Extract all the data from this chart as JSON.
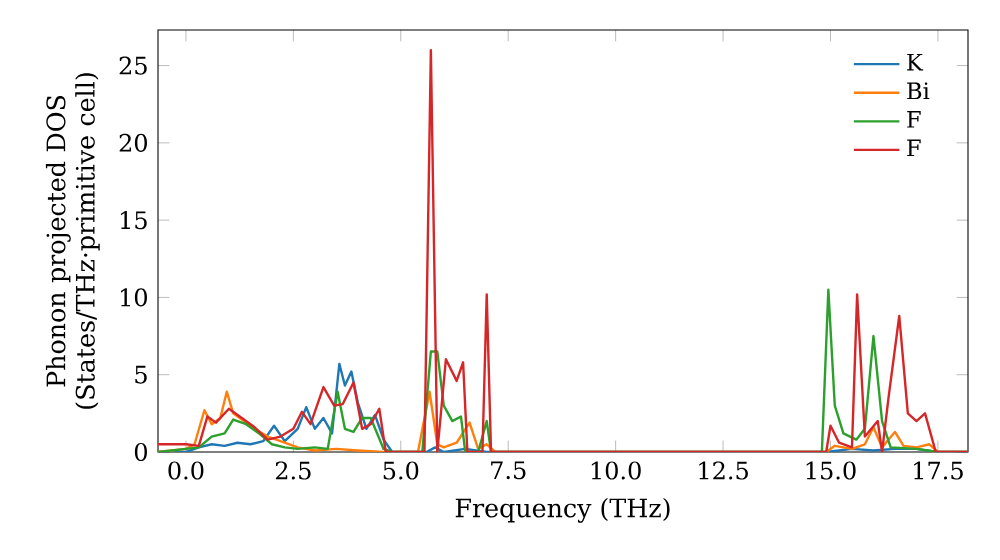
{
  "chart_data": {
    "type": "line",
    "xlabel": "Frequency (THz)",
    "ylabel": "Phonon projected DOS (States/THz·primitive cell)",
    "xlim": [
      -0.65,
      18.2
    ],
    "ylim": [
      0,
      27.3
    ],
    "xticks": [
      {
        "value": 0,
        "label": "0.0"
      },
      {
        "value": 2.5,
        "label": "2.5"
      },
      {
        "value": 5,
        "label": "5.0"
      },
      {
        "value": 7.5,
        "label": "7.5"
      },
      {
        "value": 10,
        "label": "10.0"
      },
      {
        "value": 12.5,
        "label": "12.5"
      },
      {
        "value": 15,
        "label": "15.0"
      },
      {
        "value": 17.5,
        "label": "17.5"
      }
    ],
    "yticks": [
      0,
      5,
      10,
      15,
      20,
      25
    ],
    "legend": "top right",
    "grid": false,
    "line_style": "solid",
    "marker": "none",
    "series": [
      {
        "name": "K",
        "color": "#1f77b4",
        "x": [
          -0.65,
          0,
          0.3,
          0.6,
          0.9,
          1.2,
          1.5,
          1.8,
          2.05,
          2.3,
          2.6,
          2.8,
          3.0,
          3.2,
          3.4,
          3.57,
          3.7,
          3.85,
          4.0,
          4.2,
          4.4,
          4.6,
          4.8,
          5.6,
          5.8,
          6.0,
          6.5,
          7.0,
          7.2,
          14.9,
          15.5,
          16.0,
          16.5,
          17.0,
          17.5,
          18.2
        ],
        "values": [
          0,
          0,
          0.3,
          0.5,
          0.4,
          0.6,
          0.5,
          0.7,
          1.7,
          0.7,
          1.5,
          2.9,
          1.5,
          2.2,
          1.2,
          5.7,
          4.3,
          5.2,
          3.2,
          1.5,
          2.4,
          0.8,
          0,
          0,
          0.3,
          0,
          0.2,
          0,
          0,
          0,
          0.2,
          0.1,
          0.2,
          0.2,
          0,
          0
        ]
      },
      {
        "name": "Bi",
        "color": "#ff7f0e",
        "x": [
          -0.65,
          0,
          0.2,
          0.43,
          0.6,
          0.8,
          0.95,
          1.1,
          1.3,
          1.6,
          1.9,
          2.2,
          2.6,
          3.0,
          3.5,
          4.0,
          4.6,
          5.4,
          5.67,
          5.85,
          6.0,
          6.3,
          6.6,
          6.8,
          7.0,
          7.2,
          14.9,
          15.1,
          15.5,
          15.8,
          16.0,
          16.2,
          16.5,
          16.7,
          17.0,
          17.3,
          17.5,
          18.2
        ],
        "values": [
          0,
          0.2,
          0.5,
          2.7,
          1.8,
          2.2,
          3.9,
          2.5,
          2.1,
          1.5,
          1.0,
          0.7,
          0.3,
          0.1,
          0.2,
          0.1,
          0,
          0,
          3.9,
          0.5,
          0.3,
          0.6,
          1.9,
          0.2,
          0.5,
          0,
          0,
          0.4,
          0.2,
          0.5,
          1.6,
          0.3,
          1.3,
          0.4,
          0.3,
          0.5,
          0,
          0
        ]
      },
      {
        "name": "F",
        "color": "#2ca02c",
        "x": [
          -0.65,
          0,
          0.3,
          0.6,
          0.9,
          1.1,
          1.4,
          1.7,
          2.0,
          2.3,
          2.6,
          3.0,
          3.3,
          3.53,
          3.7,
          3.9,
          4.1,
          4.3,
          4.6,
          4.8,
          5.5,
          5.7,
          5.85,
          6.0,
          6.2,
          6.4,
          6.5,
          6.8,
          7.0,
          7.1,
          14.8,
          14.95,
          15.1,
          15.3,
          15.6,
          15.8,
          16.0,
          16.2,
          16.4,
          17.0,
          17.5,
          18.2
        ],
        "values": [
          0,
          0.2,
          0.3,
          1.0,
          1.2,
          2.1,
          1.8,
          1.2,
          0.5,
          0.3,
          0.2,
          0.3,
          0.2,
          3.9,
          1.5,
          1.3,
          2.2,
          2.2,
          0.2,
          0,
          0,
          6.5,
          6.5,
          3.0,
          2.0,
          2.3,
          0,
          0,
          2.0,
          0,
          0,
          10.5,
          3.0,
          1.2,
          0.8,
          1.5,
          7.5,
          2.0,
          0.3,
          0.2,
          0,
          0
        ]
      },
      {
        "name": "F",
        "color": "#d62728",
        "x": [
          -0.65,
          0,
          0.3,
          0.5,
          0.7,
          1.0,
          1.3,
          1.6,
          1.9,
          2.2,
          2.5,
          2.7,
          2.9,
          3.2,
          3.45,
          3.65,
          3.9,
          4.1,
          4.3,
          4.5,
          4.65,
          4.8,
          5.55,
          5.7,
          5.85,
          6.05,
          6.3,
          6.45,
          6.55,
          6.9,
          7.0,
          7.1,
          14.9,
          15.0,
          15.2,
          15.5,
          15.62,
          15.8,
          16.1,
          16.2,
          16.35,
          16.6,
          16.8,
          17.0,
          17.2,
          17.45,
          17.6,
          18.2
        ],
        "values": [
          0.5,
          0.5,
          0.4,
          2.3,
          1.9,
          2.8,
          2.2,
          1.6,
          0.8,
          1.0,
          1.5,
          2.6,
          1.8,
          4.2,
          3.0,
          3.1,
          4.5,
          1.5,
          1.8,
          2.8,
          0,
          0,
          0,
          26,
          0,
          6.0,
          4.6,
          5.8,
          0,
          0,
          10.2,
          0,
          0,
          1.7,
          0.6,
          0.3,
          10.2,
          1.0,
          2.0,
          0,
          3.5,
          8.8,
          2.5,
          2.0,
          2.5,
          0,
          0,
          0
        ]
      }
    ]
  }
}
